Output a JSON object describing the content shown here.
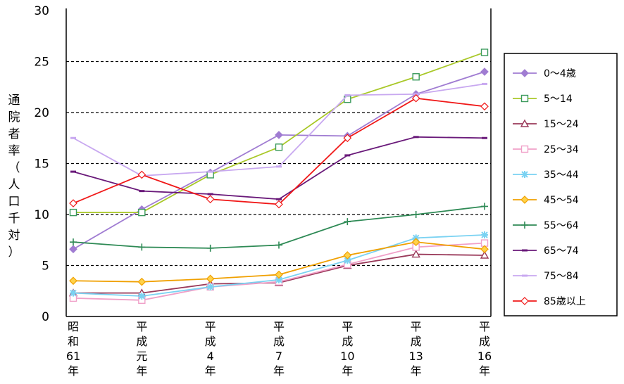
{
  "chart_data": {
    "type": "line",
    "ylabel": "通院者率（人口千対）",
    "ylim": [
      0,
      30
    ],
    "yticks": [
      "0",
      "5",
      "10",
      "15",
      "20",
      "25",
      "30"
    ],
    "gridlines": [
      5,
      10,
      15,
      20,
      25
    ],
    "grid": "dashed horizontal",
    "legend_position": "right",
    "categories": [
      [
        "昭",
        "和",
        "61",
        "年"
      ],
      [
        "平",
        "成",
        "元",
        "年"
      ],
      [
        "平",
        "成",
        "4",
        "年"
      ],
      [
        "平",
        "成",
        "7",
        "年"
      ],
      [
        "平",
        "成",
        "10",
        "年"
      ],
      [
        "平",
        "成",
        "13",
        "年"
      ],
      [
        "平",
        "成",
        "16",
        "年"
      ]
    ],
    "series": [
      {
        "name": "0～4歳",
        "color": "#a07cd2",
        "marker": "diamond",
        "values": [
          6.6,
          10.5,
          14.1,
          17.8,
          17.7,
          21.8,
          24.0
        ]
      },
      {
        "name": "5～14",
        "color": "#a9c828",
        "marker": "square",
        "markerColor": "#3a9a5c",
        "values": [
          10.2,
          10.2,
          13.9,
          16.6,
          21.3,
          23.5,
          25.9
        ]
      },
      {
        "name": "15～24",
        "color": "#9a3a5a",
        "marker": "triangle",
        "values": [
          2.3,
          2.3,
          3.2,
          3.3,
          5.0,
          6.1,
          6.0
        ]
      },
      {
        "name": "25～34",
        "color": "#f0a0c8",
        "marker": "square",
        "values": [
          1.8,
          1.6,
          2.9,
          3.4,
          5.1,
          6.8,
          7.2
        ]
      },
      {
        "name": "35～44",
        "color": "#7ad2f2",
        "marker": "asterisk",
        "values": [
          2.3,
          2.0,
          2.9,
          3.6,
          5.5,
          7.7,
          8.0
        ]
      },
      {
        "name": "45～54",
        "color": "#f0a000",
        "marker": "diamond",
        "values": [
          3.5,
          3.4,
          3.7,
          4.1,
          6.0,
          7.3,
          6.6
        ]
      },
      {
        "name": "55～64",
        "color": "#2e8a55",
        "marker": "plus",
        "values": [
          7.3,
          6.8,
          6.7,
          7.0,
          9.3,
          10.0,
          10.8
        ]
      },
      {
        "name": "65～74",
        "color": "#6a1a7a",
        "marker": "dash",
        "values": [
          14.2,
          12.3,
          12.0,
          11.5,
          15.8,
          17.6,
          17.5
        ]
      },
      {
        "name": "75～84",
        "color": "#c8a8f0",
        "marker": "dash",
        "values": [
          17.5,
          13.8,
          14.2,
          14.7,
          21.7,
          21.8,
          22.8
        ]
      },
      {
        "name": "85歳以上",
        "color": "#f01818",
        "marker": "diamond",
        "values": [
          11.1,
          13.9,
          11.5,
          11.0,
          17.5,
          21.4,
          20.6
        ]
      }
    ]
  }
}
